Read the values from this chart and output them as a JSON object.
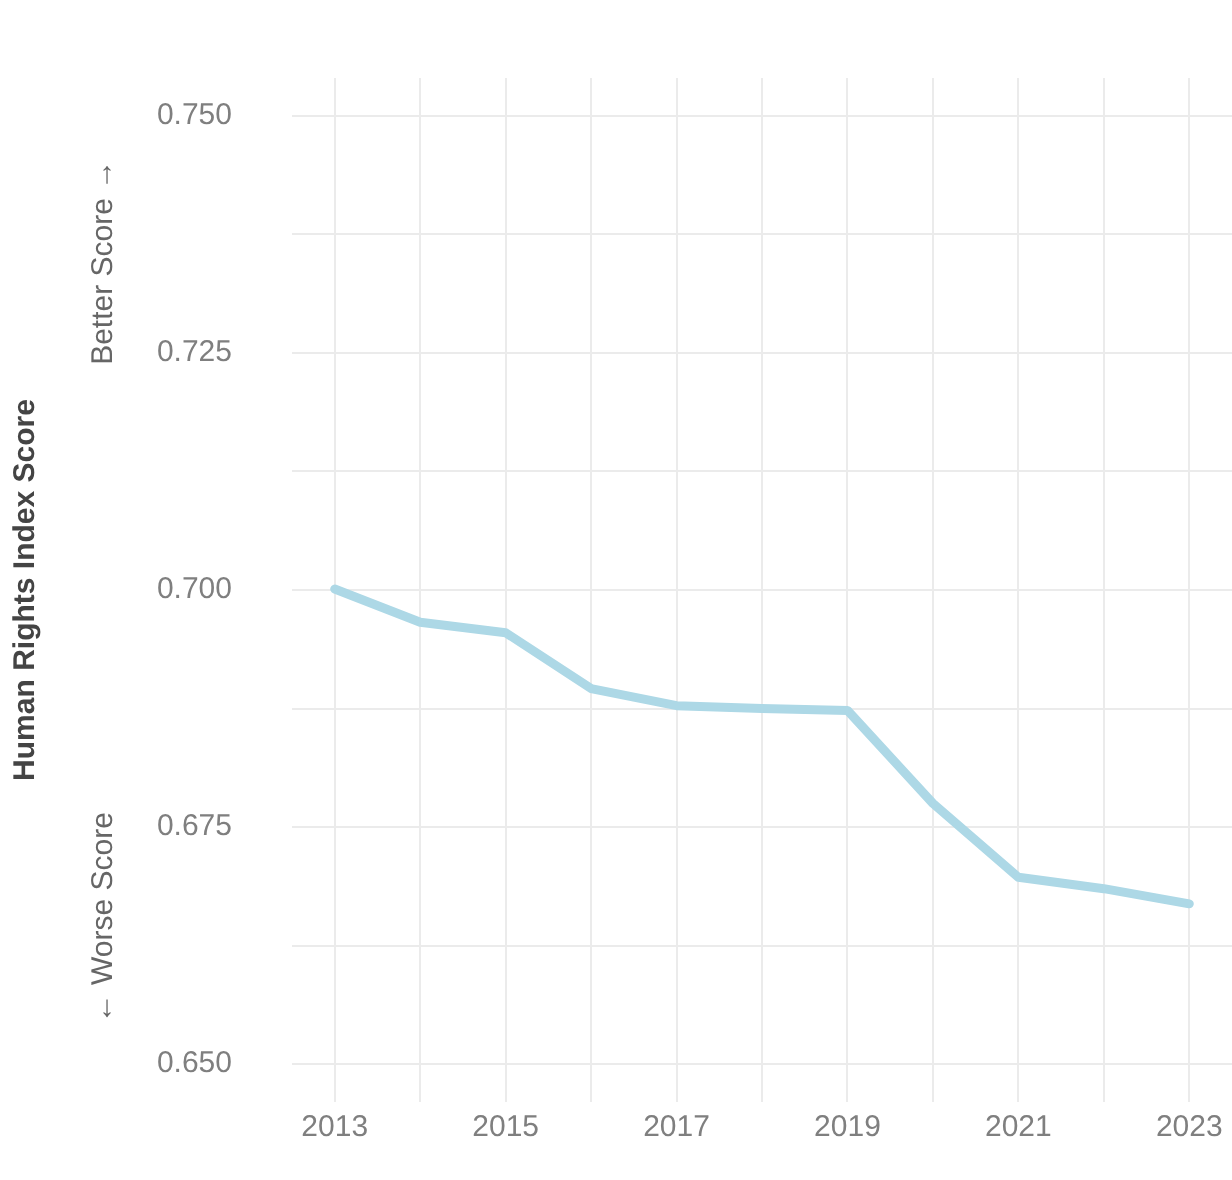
{
  "chart_data": {
    "type": "line",
    "ylabel": "Human Rights Index Score",
    "x": [
      2013,
      2014,
      2015,
      2016,
      2017,
      2018,
      2019,
      2020,
      2021,
      2022,
      2023
    ],
    "series": [
      {
        "color": "#add8e6",
        "values": [
          0.7001,
          0.6966,
          0.6955,
          0.6896,
          0.6878,
          0.6875,
          0.6873,
          0.6775,
          0.6697,
          0.6685,
          0.6669
        ]
      }
    ],
    "xlim": [
      2012.5,
      2023.5
    ],
    "xticks": [
      2013,
      {
        "value": 2014,
        "label": null
      },
      2015,
      {
        "value": 2016,
        "label": null
      },
      2017,
      {
        "value": 2018,
        "label": null
      },
      2019,
      {
        "value": 2020,
        "label": null
      },
      2021,
      {
        "value": 2022,
        "label": null
      },
      2023
    ],
    "ylim": [
      0.646,
      0.754
    ],
    "yticks": [
      {
        "value": 0.65,
        "label": "0.650"
      },
      {
        "value": 0.6625,
        "label": null
      },
      {
        "value": 0.675,
        "label": "0.675"
      },
      {
        "value": 0.6875,
        "label": null
      },
      {
        "value": 0.7,
        "label": "0.700"
      },
      {
        "value": 0.7125,
        "label": null
      },
      {
        "value": 0.725,
        "label": "0.725"
      },
      {
        "value": 0.7375,
        "label": null
      },
      {
        "value": 0.75,
        "label": "0.750"
      }
    ],
    "grid": true,
    "legend": false,
    "marker": "none",
    "line_style": "solid",
    "annotations": [
      "Better Score →",
      "← Worse Score"
    ]
  }
}
